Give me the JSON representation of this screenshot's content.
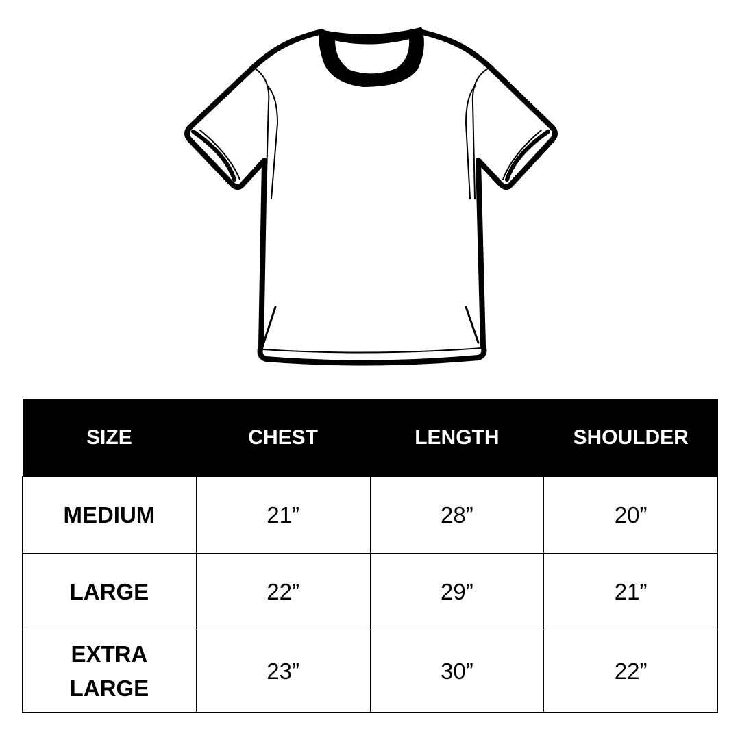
{
  "illustration": {
    "icon": "t-shirt-icon"
  },
  "table": {
    "headers": [
      "SIZE",
      "CHEST",
      "LENGTH",
      "SHOULDER"
    ],
    "rows": [
      {
        "size": "MEDIUM",
        "chest": "21”",
        "length": "28”",
        "shoulder": "20”"
      },
      {
        "size": "LARGE",
        "chest": "22”",
        "length": "29”",
        "shoulder": "21”"
      },
      {
        "size": "EXTRA LARGE",
        "chest": "23”",
        "length": "30”",
        "shoulder": "22”"
      }
    ]
  },
  "colors": {
    "header_bg": "#000000",
    "header_text": "#ffffff",
    "background": "#ffffff"
  }
}
